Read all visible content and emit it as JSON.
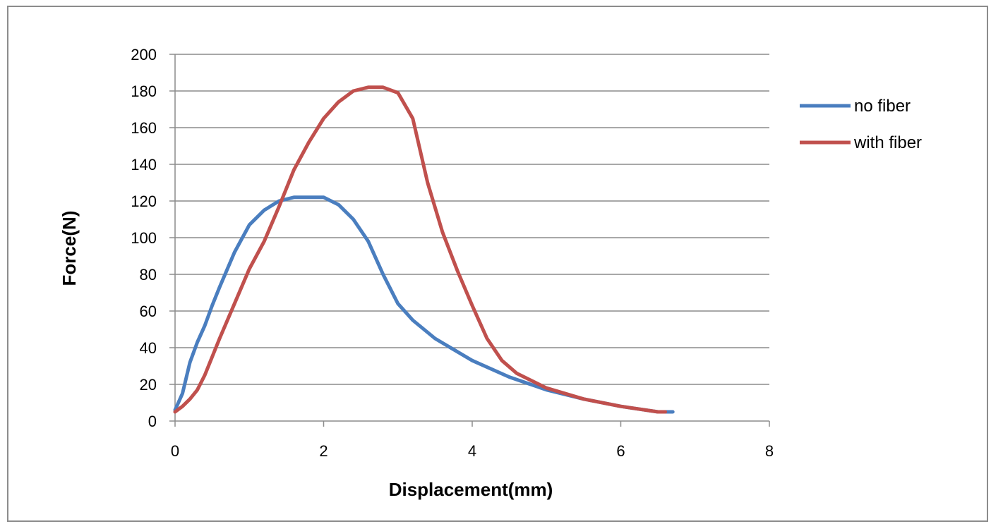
{
  "chart_data": {
    "type": "line",
    "xlabel": "Displacement(mm)",
    "ylabel": "Force(N)",
    "xlim": [
      0,
      8
    ],
    "ylim": [
      0,
      200
    ],
    "xticks": [
      0,
      2,
      4,
      6,
      8
    ],
    "yticks": [
      0,
      20,
      40,
      60,
      80,
      100,
      120,
      140,
      160,
      180,
      200
    ],
    "grid": "horizontal",
    "legend_position": "right",
    "series": [
      {
        "name": "no fiber",
        "color": "#4a7ebf",
        "x": [
          0,
          0.1,
          0.2,
          0.3,
          0.4,
          0.5,
          0.6,
          0.8,
          1.0,
          1.2,
          1.4,
          1.6,
          1.8,
          2.0,
          2.2,
          2.4,
          2.6,
          2.8,
          3.0,
          3.2,
          3.5,
          4.0,
          4.5,
          5.0,
          5.5,
          6.0,
          6.5,
          6.7
        ],
        "y": [
          6,
          15,
          32,
          43,
          52,
          63,
          73,
          92,
          107,
          115,
          120,
          122,
          122,
          122,
          118,
          110,
          98,
          80,
          64,
          55,
          45,
          33,
          24,
          17,
          12,
          8,
          5,
          5
        ]
      },
      {
        "name": "with fiber",
        "color": "#c0504d",
        "x": [
          0,
          0.1,
          0.2,
          0.3,
          0.4,
          0.5,
          0.6,
          0.8,
          1.0,
          1.2,
          1.4,
          1.6,
          1.8,
          2.0,
          2.2,
          2.4,
          2.6,
          2.8,
          3.0,
          3.2,
          3.4,
          3.6,
          3.8,
          4.0,
          4.2,
          4.4,
          4.6,
          5.0,
          5.5,
          6.0,
          6.5,
          6.6
        ],
        "y": [
          5,
          8,
          12,
          17,
          25,
          35,
          45,
          64,
          83,
          98,
          117,
          137,
          152,
          165,
          174,
          180,
          182,
          182,
          179,
          165,
          130,
          103,
          82,
          63,
          45,
          33,
          26,
          18,
          12,
          8,
          5,
          5
        ]
      }
    ]
  }
}
